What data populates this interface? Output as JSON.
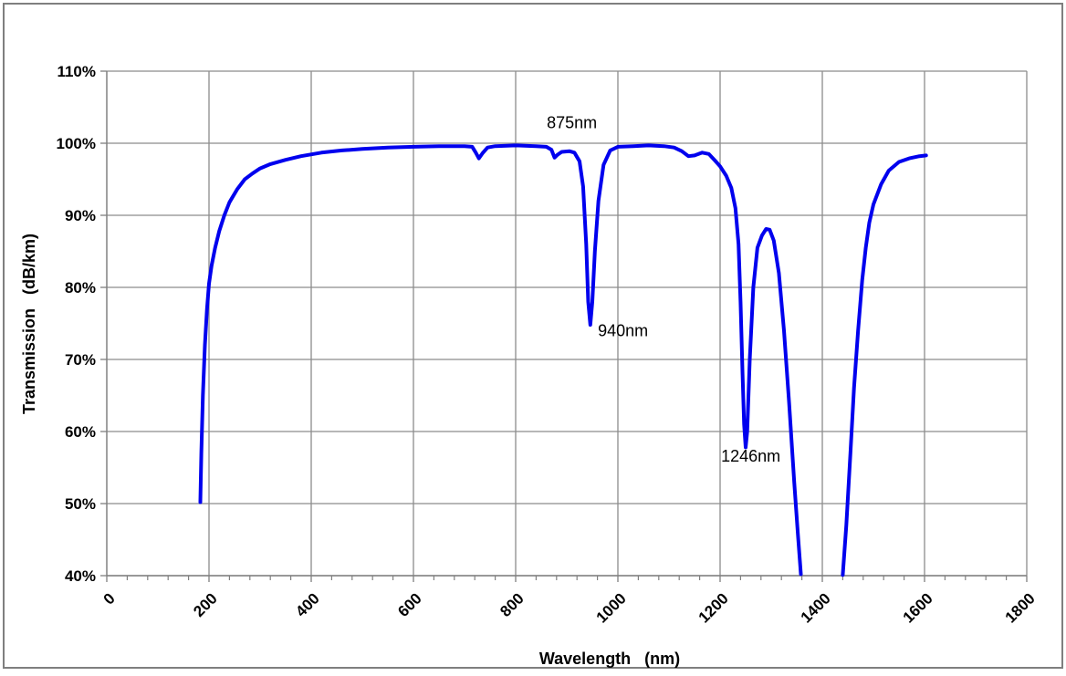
{
  "chart_data": {
    "type": "line",
    "title": "",
    "xlabel": "Wavelength (nm)",
    "ylabel": "Transmission (dB/km)",
    "xlim": [
      0,
      1800
    ],
    "ylim": [
      40,
      110
    ],
    "x_ticks": [
      0,
      200,
      400,
      600,
      800,
      1000,
      1200,
      1400,
      1600,
      1800
    ],
    "x_tick_labels": [
      "0",
      "200",
      "400",
      "600",
      "800",
      "1000",
      "1200",
      "1400",
      "1600",
      "1800"
    ],
    "y_ticks": [
      40,
      50,
      60,
      70,
      80,
      90,
      100,
      110
    ],
    "y_tick_labels": [
      "40%",
      "50%",
      "60%",
      "70%",
      "80%",
      "90%",
      "100%",
      "110%"
    ],
    "grid": true,
    "line_color": "#0000ee",
    "annotations": [
      {
        "text": "875nm",
        "x": 910,
        "y": 102.1
      },
      {
        "text": "940nm",
        "x": 1010,
        "y": 73.2
      },
      {
        "text": "1246nm",
        "x": 1260,
        "y": 55.8
      }
    ],
    "series": [
      {
        "points": [
          [
            183,
            50.2
          ],
          [
            185,
            57
          ],
          [
            188,
            65
          ],
          [
            192,
            72
          ],
          [
            196,
            77
          ],
          [
            200,
            80.5
          ],
          [
            205,
            83
          ],
          [
            212,
            85.5
          ],
          [
            220,
            87.8
          ],
          [
            230,
            90
          ],
          [
            240,
            91.8
          ],
          [
            255,
            93.6
          ],
          [
            270,
            95
          ],
          [
            285,
            95.8
          ],
          [
            300,
            96.5
          ],
          [
            320,
            97.1
          ],
          [
            350,
            97.7
          ],
          [
            380,
            98.2
          ],
          [
            420,
            98.7
          ],
          [
            460,
            99.0
          ],
          [
            500,
            99.2
          ],
          [
            550,
            99.4
          ],
          [
            600,
            99.5
          ],
          [
            650,
            99.6
          ],
          [
            700,
            99.6
          ],
          [
            715,
            99.5
          ],
          [
            722,
            98.7
          ],
          [
            728,
            97.9
          ],
          [
            735,
            98.6
          ],
          [
            745,
            99.4
          ],
          [
            760,
            99.6
          ],
          [
            800,
            99.7
          ],
          [
            840,
            99.6
          ],
          [
            860,
            99.5
          ],
          [
            870,
            99.1
          ],
          [
            876,
            98.0
          ],
          [
            882,
            98.4
          ],
          [
            890,
            98.8
          ],
          [
            905,
            98.9
          ],
          [
            915,
            98.7
          ],
          [
            925,
            97.5
          ],
          [
            932,
            94
          ],
          [
            938,
            86
          ],
          [
            942,
            78
          ],
          [
            946,
            74.8
          ],
          [
            950,
            78
          ],
          [
            955,
            85
          ],
          [
            962,
            92
          ],
          [
            972,
            97
          ],
          [
            985,
            99.0
          ],
          [
            1000,
            99.5
          ],
          [
            1030,
            99.6
          ],
          [
            1060,
            99.7
          ],
          [
            1090,
            99.6
          ],
          [
            1110,
            99.4
          ],
          [
            1125,
            98.9
          ],
          [
            1138,
            98.2
          ],
          [
            1150,
            98.3
          ],
          [
            1165,
            98.7
          ],
          [
            1178,
            98.5
          ],
          [
            1190,
            97.6
          ],
          [
            1200,
            96.8
          ],
          [
            1212,
            95.5
          ],
          [
            1222,
            93.8
          ],
          [
            1230,
            91
          ],
          [
            1236,
            86
          ],
          [
            1240,
            78
          ],
          [
            1244,
            68
          ],
          [
            1247,
            61
          ],
          [
            1250,
            57.8
          ],
          [
            1253,
            60
          ],
          [
            1258,
            70
          ],
          [
            1265,
            80
          ],
          [
            1273,
            85.5
          ],
          [
            1282,
            87.2
          ],
          [
            1290,
            88.1
          ],
          [
            1297,
            88.0
          ],
          [
            1305,
            86.5
          ],
          [
            1315,
            82
          ],
          [
            1325,
            74
          ],
          [
            1335,
            64
          ],
          [
            1345,
            53
          ],
          [
            1352,
            46
          ],
          [
            1358,
            40.2
          ]
        ]
      },
      {
        "points": [
          [
            1440,
            40.1
          ],
          [
            1447,
            47
          ],
          [
            1455,
            57
          ],
          [
            1462,
            66
          ],
          [
            1470,
            74
          ],
          [
            1478,
            81
          ],
          [
            1485,
            85.5
          ],
          [
            1492,
            89
          ],
          [
            1500,
            91.5
          ],
          [
            1515,
            94.3
          ],
          [
            1530,
            96.2
          ],
          [
            1550,
            97.4
          ],
          [
            1570,
            97.9
          ],
          [
            1590,
            98.2
          ],
          [
            1603,
            98.3
          ]
        ]
      }
    ]
  }
}
